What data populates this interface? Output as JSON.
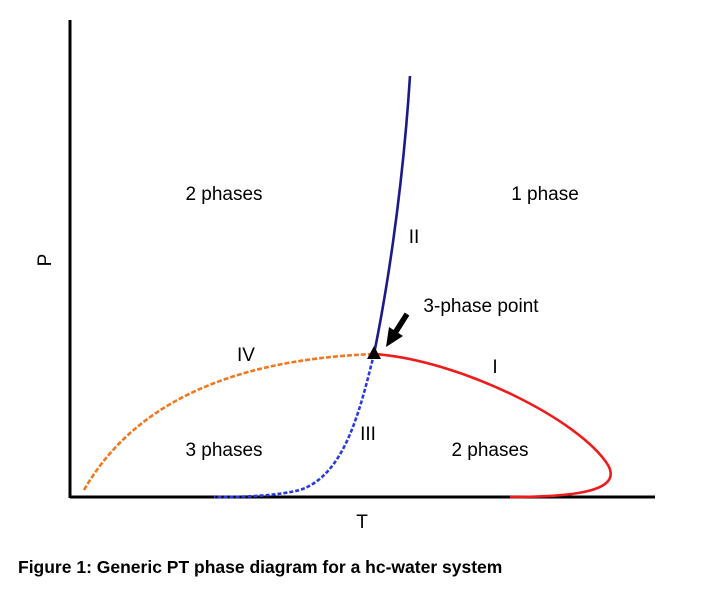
{
  "diagram": {
    "axes": {
      "x_label": "T",
      "y_label": "P"
    },
    "regions": {
      "upper_left": "2 phases",
      "upper_right": "1 phase",
      "lower_left": "3 phases",
      "lower_right": "2 phases"
    },
    "curves": {
      "I": {
        "label": "I",
        "color": "#ee1c1c",
        "style": "solid"
      },
      "II": {
        "label": "II",
        "color": "#1a1a8a",
        "style": "solid"
      },
      "III": {
        "label": "III",
        "color": "#2a3ae0",
        "style": "dashed"
      },
      "IV": {
        "label": "IV",
        "color": "#f07820",
        "style": "dashed"
      }
    },
    "triple_point": {
      "label": "3-phase point",
      "marker": "triangle",
      "pointer": "arrow"
    }
  },
  "caption": "Figure 1: Generic PT phase diagram for a hc-water system"
}
